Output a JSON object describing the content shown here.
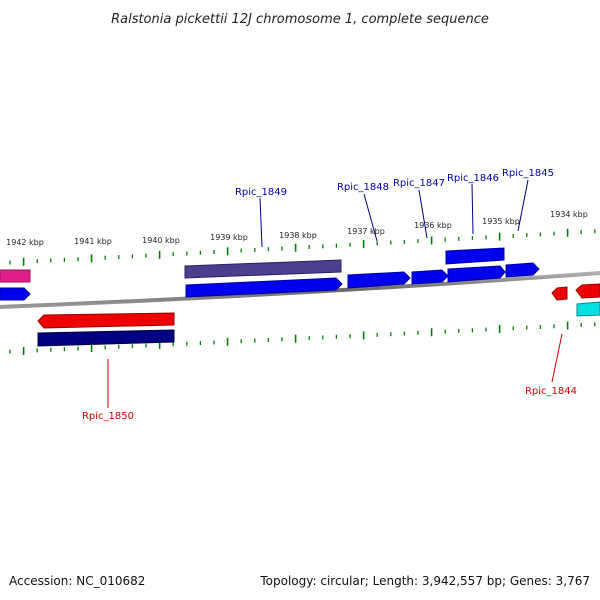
{
  "title": "Ralstonia pickettii 12J chromosome 1, complete sequence",
  "scale": {
    "labels": [
      "1942 kbp",
      "1941 kbp",
      "1940 kbp",
      "1939 kbp",
      "1938 kbp",
      "1937 kbp",
      "1936 kbp",
      "1935 kbp",
      "1934 kbp"
    ]
  },
  "genes": [
    {
      "name": "Rpic_1849",
      "strand": "+",
      "color": "#0000cc"
    },
    {
      "name": "Rpic_1848",
      "strand": "+",
      "color": "#0000cc"
    },
    {
      "name": "Rpic_1847",
      "strand": "+",
      "color": "#0000cc"
    },
    {
      "name": "Rpic_1846",
      "strand": "+",
      "color": "#0000cc"
    },
    {
      "name": "Rpic_1845",
      "strand": "+",
      "color": "#0000cc"
    },
    {
      "name": "Rpic_1850",
      "strand": "-",
      "color": "#cc0000"
    },
    {
      "name": "Rpic_1844",
      "strand": "-",
      "color": "#cc0000"
    }
  ],
  "colors": {
    "forward_gene": "#0000ee",
    "forward_gene_alt": "#4a3f8f",
    "reverse_gene": "#ee0000",
    "reverse_gene_alt": "#000080",
    "magenta_gene": "#e0208a",
    "cyan_gene": "#00e0e0",
    "backbone": "#808080",
    "tick": "#008000"
  },
  "footer": {
    "accession": "Accession: NC_010682",
    "summary": "Topology: circular; Length: 3,942,557 bp; Genes: 3,767"
  }
}
